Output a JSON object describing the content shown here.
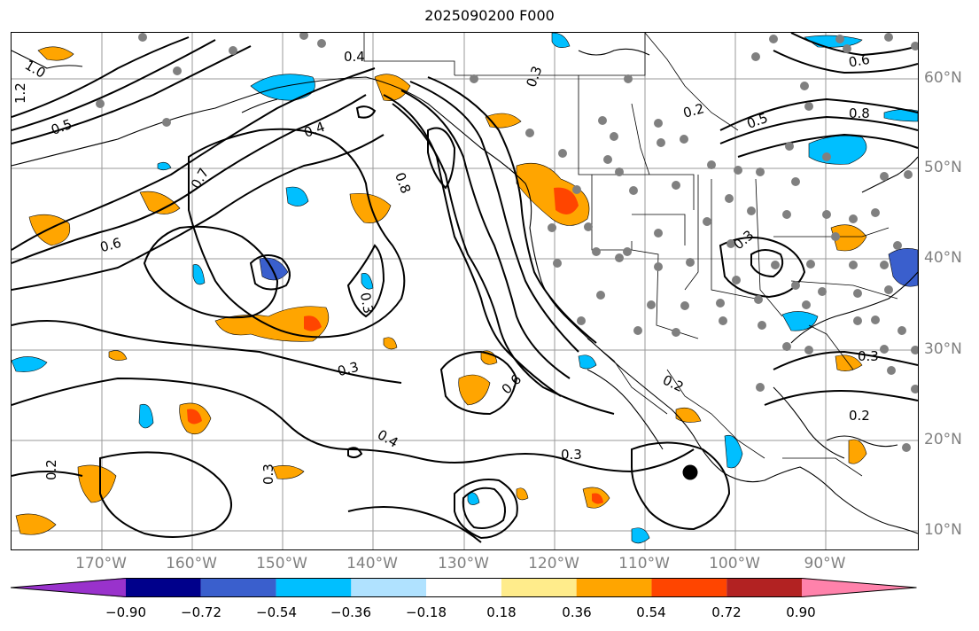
{
  "title": "2025090200 F000",
  "longitude_labels": [
    "170°W",
    "160°W",
    "150°W",
    "140°W",
    "130°W",
    "120°W",
    "110°W",
    "100°W",
    "90°W"
  ],
  "latitude_labels": [
    "60°N",
    "50°N",
    "40°N",
    "30°N",
    "20°N",
    "10°N"
  ],
  "contour_labels": [
    "0.4",
    "0.3",
    "0.2",
    "0.5",
    "0.6",
    "0.8",
    "0.7",
    "1.0",
    "1.2",
    "0.3",
    "0.4",
    "0.6",
    "0.3",
    "0.3",
    "0.2",
    "0.3",
    "0.2",
    "0.3",
    "0.4",
    "0.6",
    "0.8",
    "0.5",
    "0.2",
    "0.3"
  ],
  "colorbar": {
    "ticks": [
      "−0.90",
      "−0.72",
      "−0.54",
      "−0.36",
      "−0.18",
      "0.18",
      "0.36",
      "0.54",
      "0.72",
      "0.90"
    ],
    "colors": [
      "#9932CC",
      "#00008B",
      "#3A5FCD",
      "#00BFFF",
      "#B0E2FF",
      "#FFFFFF",
      "#FFEC8B",
      "#FFA500",
      "#FF4500",
      "#B22222",
      "#FF82AB"
    ]
  }
}
